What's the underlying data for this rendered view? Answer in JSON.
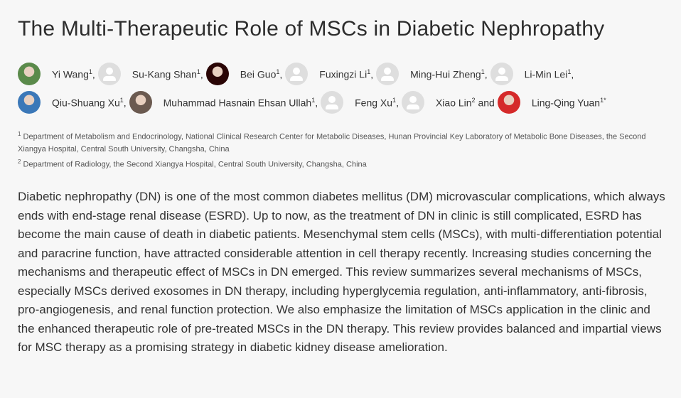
{
  "title": "The Multi-Therapeutic Role of MSCs in Diabetic Nephropathy",
  "authors": [
    [
      {
        "name": "Yi Wang",
        "sup": "1",
        "sep": ",",
        "avatar": "photo",
        "color": "#5a8a4a"
      },
      {
        "name": "Su-Kang Shan",
        "sup": "1",
        "sep": ",",
        "avatar": "blank"
      },
      {
        "name": "Bei Guo",
        "sup": "1",
        "sep": ",",
        "avatar": "photo",
        "color": "#2a0505"
      },
      {
        "name": "Fuxingzi Li",
        "sup": "1",
        "sep": ",",
        "avatar": "blank"
      },
      {
        "name": "Ming-Hui Zheng",
        "sup": "1",
        "sep": ",",
        "avatar": "blank"
      },
      {
        "name": "Li-Min Lei",
        "sup": "1",
        "sep": ",",
        "avatar": "blank"
      }
    ],
    [
      {
        "name": "Qiu-Shuang Xu",
        "sup": "1",
        "sep": ",",
        "avatar": "photo",
        "color": "#3b78b8"
      },
      {
        "name": "Muhammad Hasnain Ehsan Ullah",
        "sup": "1",
        "sep": ",",
        "avatar": "photo",
        "color": "#6b5a50"
      },
      {
        "name": "Feng Xu",
        "sup": "1",
        "sep": ",",
        "avatar": "blank"
      },
      {
        "name": "Xiao Lin",
        "sup": "2",
        "sep": " and",
        "avatar": "blank"
      },
      {
        "name": "Ling-Qing Yuan",
        "sup": "1*",
        "sep": "",
        "avatar": "photo",
        "color": "#d52a2a"
      }
    ]
  ],
  "affiliations": [
    {
      "sup": "1",
      "text": "Department of Metabolism and Endocrinology, National Clinical Research Center for Metabolic Diseases, Hunan Provincial Key Laboratory of Metabolic Bone Diseases, the Second Xiangya Hospital, Central South University, Changsha, China"
    },
    {
      "sup": "2",
      "text": "Department of Radiology, the Second Xiangya Hospital, Central South University, Changsha, China"
    }
  ],
  "abstract": "Diabetic nephropathy (DN) is one of the most common diabetes mellitus (DM) microvascular complications, which always ends with end-stage renal disease (ESRD). Up to now, as the treatment of DN in clinic is still complicated, ESRD has become the main cause of death in diabetic patients. Mesenchymal stem cells (MSCs), with multi-differentiation potential and paracrine function, have attracted considerable attention in cell therapy recently. Increasing studies concerning the mechanisms and therapeutic effect of MSCs in DN emerged. This review summarizes several mechanisms of MSCs, especially MSCs derived exosomes in DN therapy, including hyperglycemia regulation, anti-inflammatory, anti-fibrosis, pro-angiogenesis, and renal function protection. We also emphasize the limitation of MSCs application in the clinic and the enhanced therapeutic role of pre-treated MSCs in the DN therapy. This review provides balanced and impartial views for MSC therapy as a promising strategy in diabetic kidney disease amelioration."
}
